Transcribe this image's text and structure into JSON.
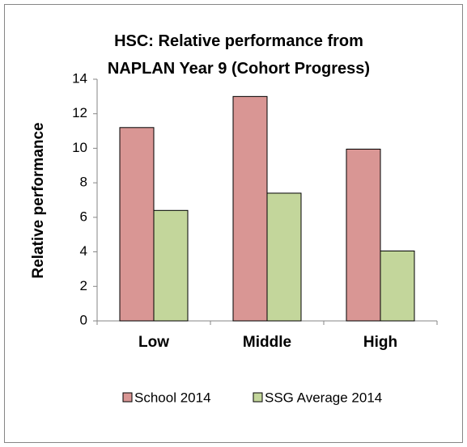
{
  "chart_data": {
    "type": "bar",
    "title": "HSC: Relative performance from NAPLAN Year 9 (Cohort Progress)",
    "ylabel": "Relative performance",
    "categories": [
      "Low",
      "Middle",
      "High"
    ],
    "series": [
      {
        "name": "School 2014",
        "color": "#d99694",
        "values": [
          11.2,
          13.0,
          9.95
        ]
      },
      {
        "name": "SSG Average 2014",
        "color": "#c3d69b",
        "values": [
          6.4,
          7.4,
          4.05
        ]
      }
    ],
    "ylim": [
      0,
      14
    ],
    "yticks": [
      0,
      2,
      4,
      6,
      8,
      10,
      12,
      14
    ],
    "grid": false,
    "legend": "bottom"
  }
}
